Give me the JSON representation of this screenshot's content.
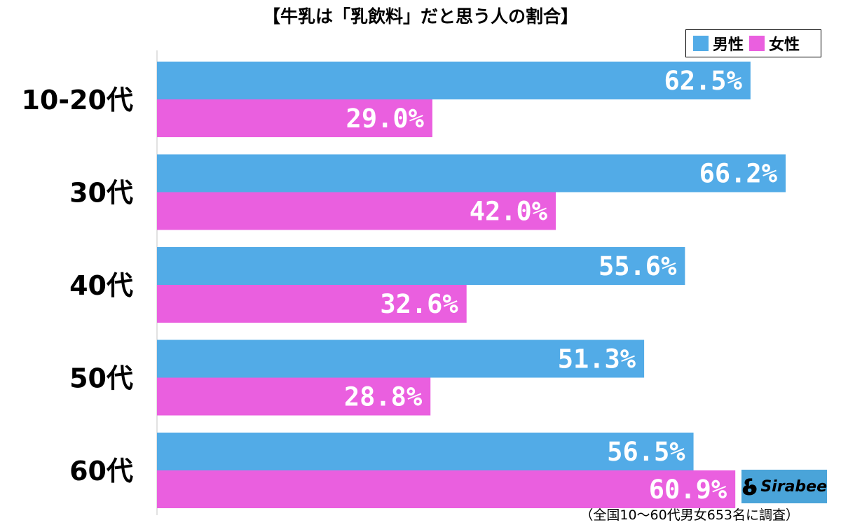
{
  "chart_data": {
    "type": "bar",
    "orientation": "horizontal",
    "title": "【牛乳は「乳飲料」だと思う人の割合】",
    "categories": [
      "10-20代",
      "30代",
      "40代",
      "50代",
      "60代"
    ],
    "series": [
      {
        "name": "男性",
        "color": "#52abe7",
        "values": [
          62.5,
          66.2,
          55.6,
          51.3,
          56.5
        ]
      },
      {
        "name": "女性",
        "color": "#ea5fdf",
        "values": [
          29.0,
          42.0,
          32.6,
          28.8,
          60.9
        ]
      }
    ],
    "value_suffix": "%",
    "data_labels": [
      [
        "62.5%",
        "66.2%",
        "55.6%",
        "51.3%",
        "56.5%"
      ],
      [
        "29.0%",
        "42.0%",
        "32.6%",
        "28.8%",
        "60.9%"
      ]
    ],
    "xlim": [
      0,
      70
    ],
    "grid": false,
    "legend_position": "top-right",
    "footnote": "（全国10〜60代男女653名に調査）"
  },
  "logo": {
    "text": "Sirabee",
    "color": "#4aa4d9"
  }
}
